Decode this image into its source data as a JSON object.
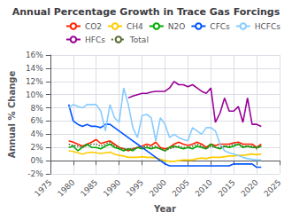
{
  "chart_data": {
    "type": "line",
    "title": "Annual Percentage Growth in Trace Gas Forcings",
    "xlabel": "Year",
    "ylabel": "Annual % Change",
    "xlim": [
      1975,
      2025
    ],
    "ylim": [
      -2,
      16
    ],
    "xticks": [
      1975,
      1980,
      1985,
      1990,
      1995,
      2000,
      2005,
      2010,
      2015,
      2020,
      2025
    ],
    "yticks": [
      {
        "value": -2,
        "label": "-2%"
      },
      {
        "value": 0,
        "label": "0%"
      },
      {
        "value": 2,
        "label": "2%"
      },
      {
        "value": 4,
        "label": "4%"
      },
      {
        "value": 6,
        "label": "6%"
      },
      {
        "value": 8,
        "label": "8%"
      },
      {
        "value": 10,
        "label": "10%"
      },
      {
        "value": 12,
        "label": "12%"
      },
      {
        "value": 14,
        "label": "14%"
      },
      {
        "value": 16,
        "label": "16%"
      }
    ],
    "grid": true,
    "legend": "upper right",
    "series": [
      {
        "name": "CO2",
        "color": "#ff2200",
        "line_style": "solid",
        "x": [
          1979,
          1980,
          1981,
          1982,
          1983,
          1984,
          1985,
          1986,
          1987,
          1988,
          1989,
          1990,
          1991,
          1992,
          1993,
          1994,
          1995,
          1996,
          1997,
          1998,
          1999,
          2000,
          2001,
          2002,
          2003,
          2004,
          2005,
          2006,
          2007,
          2008,
          2009,
          2010,
          2011,
          2012,
          2013,
          2014,
          2015,
          2016,
          2017,
          2018,
          2019,
          2020,
          2021
        ],
        "values": [
          3.0,
          2.8,
          2.5,
          2.2,
          2.5,
          2.8,
          3.2,
          2.6,
          2.8,
          3.0,
          2.5,
          2.0,
          1.8,
          1.5,
          1.8,
          2.0,
          2.2,
          2.5,
          2.3,
          2.8,
          2.0,
          1.8,
          2.0,
          2.5,
          2.8,
          2.5,
          2.3,
          2.5,
          2.8,
          2.5,
          2.0,
          2.5,
          2.3,
          2.5,
          2.5,
          2.5,
          2.7,
          2.8,
          2.5,
          2.5,
          2.5,
          2.0,
          2.5
        ]
      },
      {
        "name": "CH4",
        "color": "#ffcc00",
        "line_style": "solid",
        "x": [
          1979,
          1980,
          1981,
          1982,
          1983,
          1984,
          1985,
          1986,
          1987,
          1988,
          1989,
          1990,
          1991,
          1992,
          1993,
          1994,
          1995,
          1996,
          1997,
          1998,
          1999,
          2000,
          2001,
          2002,
          2003,
          2004,
          2005,
          2006,
          2007,
          2008,
          2009,
          2010,
          2011,
          2012,
          2013,
          2014,
          2015,
          2016,
          2017,
          2018,
          2019,
          2020,
          2021
        ],
        "values": [
          1.5,
          1.4,
          1.2,
          1.0,
          1.2,
          1.3,
          1.2,
          1.1,
          1.2,
          1.3,
          1.0,
          0.8,
          0.7,
          0.5,
          0.5,
          0.5,
          0.6,
          0.5,
          0.5,
          0.4,
          0.2,
          0.0,
          -0.1,
          -0.1,
          0.0,
          0.1,
          0.1,
          0.1,
          0.3,
          0.4,
          0.3,
          0.5,
          0.5,
          0.5,
          0.6,
          0.7,
          0.7,
          0.8,
          0.8,
          0.9,
          1.0,
          0.9,
          1.0
        ]
      },
      {
        "name": "N2O",
        "color": "#00aa00",
        "line_style": "solid",
        "x": [
          1979,
          1980,
          1981,
          1982,
          1983,
          1984,
          1985,
          1986,
          1987,
          1988,
          1989,
          1990,
          1991,
          1992,
          1993,
          1994,
          1995,
          1996,
          1997,
          1998,
          1999,
          2000,
          2001,
          2002,
          2003,
          2004,
          2005,
          2006,
          2007,
          2008,
          2009,
          2010,
          2011,
          2012,
          2013,
          2014,
          2015,
          2016,
          2017,
          2018,
          2019,
          2020,
          2021
        ],
        "values": [
          2.0,
          2.2,
          1.5,
          2.0,
          2.5,
          2.0,
          2.0,
          1.8,
          2.2,
          2.5,
          2.0,
          1.8,
          1.5,
          1.8,
          1.5,
          2.0,
          1.8,
          2.0,
          1.8,
          2.0,
          1.8,
          1.5,
          2.0,
          2.2,
          2.0,
          1.8,
          2.0,
          1.8,
          2.2,
          2.0,
          1.8,
          2.5,
          2.0,
          1.8,
          2.2,
          2.0,
          2.2,
          2.5,
          2.0,
          2.2,
          2.0,
          2.0,
          2.2
        ]
      },
      {
        "name": "CFCs",
        "color": "#0055ff",
        "line_style": "solid",
        "x": [
          1979,
          1980,
          1981,
          1982,
          1983,
          1984,
          1985,
          1986,
          1987,
          1988,
          1989,
          1990,
          1991,
          1992,
          1993,
          1994,
          1995,
          1996,
          1997,
          1998,
          1999,
          2000,
          2001,
          2002,
          2003,
          2004,
          2005,
          2006,
          2007,
          2008,
          2009,
          2010,
          2011,
          2012,
          2013,
          2014,
          2015,
          2016,
          2017,
          2018,
          2019,
          2020,
          2021
        ],
        "values": [
          8.5,
          6.0,
          5.5,
          5.2,
          5.5,
          5.2,
          5.2,
          5.0,
          5.5,
          5.5,
          5.0,
          4.5,
          4.0,
          3.5,
          3.0,
          2.5,
          2.0,
          1.5,
          1.0,
          0.5,
          0.0,
          -0.5,
          -0.8,
          -0.8,
          -0.8,
          -0.8,
          -0.8,
          -0.8,
          -0.8,
          -0.8,
          -0.8,
          -0.8,
          -0.8,
          -0.8,
          -0.8,
          -0.8,
          -0.5,
          -0.5,
          -0.5,
          -0.5,
          -0.5,
          -1.0,
          -1.0
        ]
      },
      {
        "name": "HCFCs",
        "color": "#88ccff",
        "line_style": "solid",
        "x": [
          1979,
          1980,
          1981,
          1982,
          1983,
          1984,
          1985,
          1986,
          1987,
          1988,
          1989,
          1990,
          1991,
          1992,
          1993,
          1994,
          1995,
          1996,
          1997,
          1998,
          1999,
          2000,
          2001,
          2002,
          2003,
          2004,
          2005,
          2006,
          2007,
          2008,
          2009,
          2010,
          2011,
          2012,
          2013,
          2014,
          2015,
          2016,
          2017,
          2018,
          2019,
          2020,
          2021
        ],
        "values": [
          8.0,
          8.5,
          8.2,
          8.0,
          8.5,
          8.5,
          8.5,
          7.5,
          4.5,
          8.5,
          6.5,
          5.8,
          11.0,
          8.5,
          5.0,
          3.5,
          6.8,
          7.0,
          6.5,
          3.0,
          6.5,
          5.5,
          3.5,
          4.0,
          3.5,
          3.2,
          3.0,
          5.0,
          4.5,
          4.0,
          5.0,
          5.0,
          4.5,
          2.5,
          1.5,
          1.2,
          1.0,
          0.8,
          0.5,
          0.3,
          0.2,
          0.1,
          0.1
        ]
      },
      {
        "name": "HFCs",
        "color": "#990099",
        "line_style": "solid",
        "x": [
          1992,
          1993,
          1994,
          1995,
          1996,
          1997,
          1998,
          1999,
          2000,
          2001,
          2002,
          2003,
          2004,
          2005,
          2006,
          2007,
          2008,
          2009,
          2010,
          2011,
          2012,
          2013,
          2014,
          2015,
          2016,
          2017,
          2018,
          2019,
          2020,
          2021
        ],
        "values": [
          9.5,
          9.8,
          10.0,
          10.2,
          10.2,
          10.4,
          10.5,
          10.5,
          10.5,
          11.0,
          12.0,
          11.5,
          11.5,
          11.2,
          11.5,
          11.0,
          10.5,
          10.2,
          11.0,
          5.8,
          7.2,
          9.5,
          7.5,
          7.5,
          8.2,
          5.8,
          9.5,
          5.5,
          5.5,
          5.2
        ]
      },
      {
        "name": "Total",
        "color": "#556b2f",
        "line_style": "dotted",
        "x": [
          1979,
          1980,
          1981,
          1982,
          1983,
          1984,
          1985,
          1986,
          1987,
          1988,
          1989,
          1990,
          1991,
          1992,
          1993,
          1994,
          1995,
          1996,
          1997,
          1998,
          1999,
          2000,
          2001,
          2002,
          2003,
          2004,
          2005,
          2006,
          2007,
          2008,
          2009,
          2010,
          2011,
          2012,
          2013,
          2014,
          2015,
          2016,
          2017,
          2018,
          2019,
          2020,
          2021
        ],
        "values": [
          2.5,
          2.3,
          2.2,
          2.0,
          2.3,
          2.5,
          2.5,
          2.2,
          2.5,
          2.8,
          2.2,
          2.0,
          1.8,
          1.8,
          1.8,
          2.0,
          2.0,
          2.2,
          2.0,
          2.2,
          1.8,
          1.5,
          1.8,
          2.0,
          2.2,
          2.0,
          2.0,
          2.2,
          2.5,
          2.2,
          1.8,
          2.2,
          2.0,
          2.0,
          2.2,
          2.2,
          2.5,
          2.5,
          2.2,
          2.2,
          2.2,
          1.8,
          2.2
        ]
      }
    ]
  }
}
